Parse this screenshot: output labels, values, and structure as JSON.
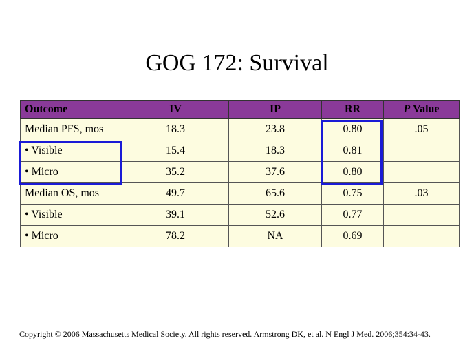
{
  "title": "GOG 172: Survival",
  "table": {
    "headers": {
      "outcome": "Outcome",
      "iv": "IV",
      "ip": "IP",
      "rr": "RR",
      "p_prefix": "P",
      "p_suffix": " Value"
    },
    "rows": [
      {
        "outcome": "Median PFS, mos",
        "iv": "18.3",
        "ip": "23.8",
        "rr": "0.80",
        "p": ".05"
      },
      {
        "outcome": "• Visible",
        "iv": "15.4",
        "ip": "18.3",
        "rr": "0.81",
        "p": ""
      },
      {
        "outcome": "• Micro",
        "iv": "35.2",
        "ip": "37.6",
        "rr": "0.80",
        "p": ""
      },
      {
        "outcome": "Median OS, mos",
        "iv": "49.7",
        "ip": "65.6",
        "rr": "0.75",
        "p": ".03"
      },
      {
        "outcome": "• Visible",
        "iv": "39.1",
        "ip": "52.6",
        "rr": "0.77",
        "p": ""
      },
      {
        "outcome": "• Micro",
        "iv": "78.2",
        "ip": "NA",
        "rr": "0.69",
        "p": ""
      }
    ]
  },
  "colors": {
    "header_bg": "#8a3a99",
    "cell_bg": "#fdfce0",
    "highlight": "#1a1ad6"
  },
  "footer": "Copyright © 2006 Massachusetts Medical Society. All rights reserved. Armstrong DK, et al. N Engl J Med. 2006;354:34-43."
}
